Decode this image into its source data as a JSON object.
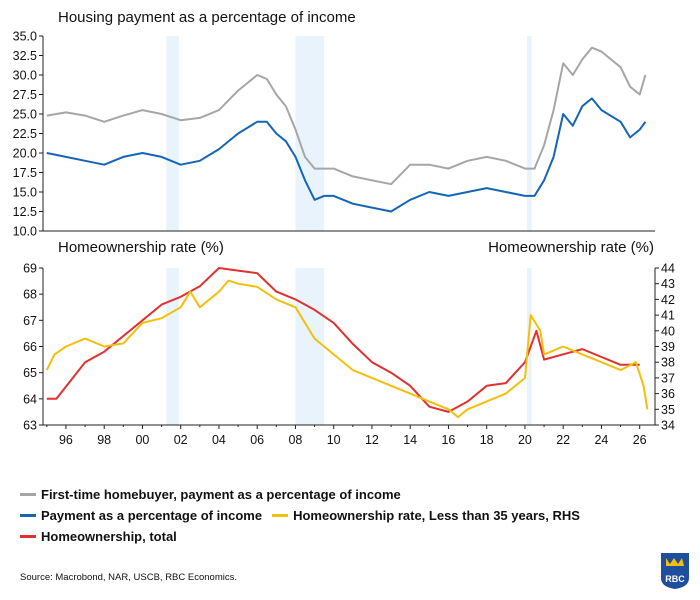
{
  "source": "Source: Macrobond, NAR, USCB, RBC Economics.",
  "logo_text": "RBC",
  "colors": {
    "first_time": "#a6a6a6",
    "payment": "#1565b5",
    "young": "#f2c00b",
    "total": "#e03030",
    "recession": "#e8f3fc",
    "logo_blue": "#1f4e9c",
    "logo_gold": "#f2c00b"
  },
  "legend": [
    [
      {
        "key": "first_time",
        "label": "First-time homebuyer, payment as a percentage of income"
      }
    ],
    [
      {
        "key": "payment",
        "label": "Payment as a percentage of income"
      },
      {
        "key": "young",
        "label": "Homeownership rate, Less than 35 years, RHS"
      }
    ],
    [
      {
        "key": "total",
        "label": "Homeownership, total"
      }
    ]
  ],
  "chart_data": [
    {
      "type": "line",
      "title": "Housing payment as a percentage of income",
      "ylim": [
        10,
        35
      ],
      "yticks": [
        "10.0",
        "12.5",
        "15.0",
        "17.5",
        "20.0",
        "22.5",
        "25.0",
        "27.5",
        "30.0",
        "32.5",
        "35.0"
      ],
      "xlim": [
        1994.8,
        2026.8
      ],
      "recessions": [
        [
          2001.25,
          2001.9
        ],
        [
          2008.0,
          2009.5
        ],
        [
          2020.1,
          2020.35
        ]
      ],
      "series": [
        {
          "name": "First-time homebuyer, payment as a percentage of income",
          "color_key": "first_time",
          "x": [
            1995,
            1996,
            1997,
            1998,
            1999,
            2000,
            2001,
            2002,
            2003,
            2004,
            2005,
            2006,
            2006.5,
            2007,
            2007.5,
            2008,
            2008.5,
            2009,
            2010,
            2011,
            2012,
            2013,
            2014,
            2015,
            2016,
            2017,
            2018,
            2019,
            2020,
            2020.5,
            2021,
            2021.5,
            2022,
            2022.5,
            2023,
            2023.5,
            2024,
            2025,
            2025.5,
            2026,
            2026.3
          ],
          "y": [
            24.8,
            25.2,
            24.8,
            24.0,
            24.8,
            25.5,
            25.0,
            24.2,
            24.5,
            25.5,
            28.0,
            30.0,
            29.5,
            27.5,
            26.0,
            23.0,
            19.5,
            18.0,
            18.0,
            17.0,
            16.5,
            16.0,
            18.5,
            18.5,
            18.0,
            19.0,
            19.5,
            19.0,
            18.0,
            18.0,
            21.0,
            25.5,
            31.5,
            30.0,
            32.0,
            33.5,
            33.0,
            31.0,
            28.5,
            27.5,
            30.0
          ]
        },
        {
          "name": "Payment as a percentage of income",
          "color_key": "payment",
          "x": [
            1995,
            1996,
            1997,
            1998,
            1999,
            2000,
            2001,
            2002,
            2003,
            2004,
            2005,
            2006,
            2006.5,
            2007,
            2007.5,
            2008,
            2008.5,
            2009,
            2009.5,
            2010,
            2011,
            2012,
            2013,
            2014,
            2015,
            2016,
            2017,
            2018,
            2019,
            2020,
            2020.5,
            2021,
            2021.5,
            2022,
            2022.5,
            2023,
            2023.5,
            2024,
            2025,
            2025.5,
            2026,
            2026.3
          ],
          "y": [
            20.0,
            19.5,
            19.0,
            18.5,
            19.5,
            20.0,
            19.5,
            18.5,
            19.0,
            20.5,
            22.5,
            24.0,
            24.0,
            22.5,
            21.5,
            19.5,
            16.5,
            14.0,
            14.5,
            14.5,
            13.5,
            13.0,
            12.5,
            14.0,
            15.0,
            14.5,
            15.0,
            15.5,
            15.0,
            14.5,
            14.5,
            16.5,
            19.5,
            25.0,
            23.5,
            26.0,
            27.0,
            25.5,
            24.0,
            22.0,
            23.0,
            24.0
          ]
        }
      ]
    },
    {
      "type": "line",
      "title": "Homeownership rate (%)",
      "title_rhs": "Homeownership rate (%)",
      "ylim": [
        63,
        69
      ],
      "yticks": [
        "63",
        "64",
        "65",
        "66",
        "67",
        "68",
        "69"
      ],
      "ylim_rhs": [
        34,
        44
      ],
      "yticks_rhs": [
        "34",
        "35",
        "36",
        "37",
        "38",
        "39",
        "40",
        "41",
        "42",
        "43",
        "44"
      ],
      "xlim": [
        1994.8,
        2026.8
      ],
      "xticks": [
        "96",
        "98",
        "00",
        "02",
        "04",
        "06",
        "08",
        "10",
        "12",
        "14",
        "16",
        "18",
        "20",
        "22",
        "24",
        "26"
      ],
      "recessions": [
        [
          2001.25,
          2001.9
        ],
        [
          2008.0,
          2009.5
        ],
        [
          2020.1,
          2020.35
        ]
      ],
      "series": [
        {
          "name": "Homeownership, total",
          "color_key": "total",
          "axis": "left",
          "x": [
            1995,
            1995.5,
            1997,
            1998,
            2000,
            2001,
            2002,
            2003,
            2004,
            2005,
            2006,
            2007,
            2008,
            2009,
            2010,
            2011,
            2012,
            2013,
            2014,
            2015,
            2016,
            2017,
            2018,
            2019,
            2020,
            2020.6,
            2021,
            2022,
            2023,
            2024,
            2025,
            2026
          ],
          "y": [
            64.0,
            64.0,
            65.4,
            65.8,
            67.0,
            67.6,
            67.9,
            68.3,
            69.0,
            68.9,
            68.8,
            68.1,
            67.8,
            67.4,
            66.9,
            66.1,
            65.4,
            65.0,
            64.5,
            63.7,
            63.5,
            63.9,
            64.5,
            64.6,
            65.4,
            66.6,
            65.5,
            65.7,
            65.9,
            65.6,
            65.3,
            65.3
          ]
        },
        {
          "name": "Homeownership rate, Less than 35 years, RHS",
          "color_key": "young",
          "axis": "right",
          "x": [
            1995,
            1995.4,
            1996,
            1997,
            1998,
            1999,
            2000,
            2001,
            2002,
            2002.5,
            2003,
            2004,
            2004.5,
            2005,
            2006,
            2007,
            2008,
            2008.5,
            2009,
            2010,
            2011,
            2012,
            2013,
            2014,
            2015,
            2016,
            2016.5,
            2017,
            2018,
            2019,
            2020,
            2020.3,
            2020.8,
            2021,
            2022,
            2023,
            2024,
            2025,
            2025.8,
            2026.2,
            2026.4
          ],
          "y": [
            37.5,
            38.5,
            39.0,
            39.5,
            39.0,
            39.2,
            40.5,
            40.8,
            41.5,
            42.5,
            41.5,
            42.5,
            43.2,
            43.0,
            42.8,
            42.0,
            41.5,
            40.5,
            39.5,
            38.5,
            37.5,
            37.0,
            36.5,
            36.0,
            35.5,
            35.0,
            34.5,
            35.0,
            35.5,
            36.0,
            37.0,
            41.0,
            40.0,
            38.5,
            39.0,
            38.5,
            38.0,
            37.5,
            38.0,
            36.5,
            35.0
          ]
        }
      ]
    }
  ]
}
